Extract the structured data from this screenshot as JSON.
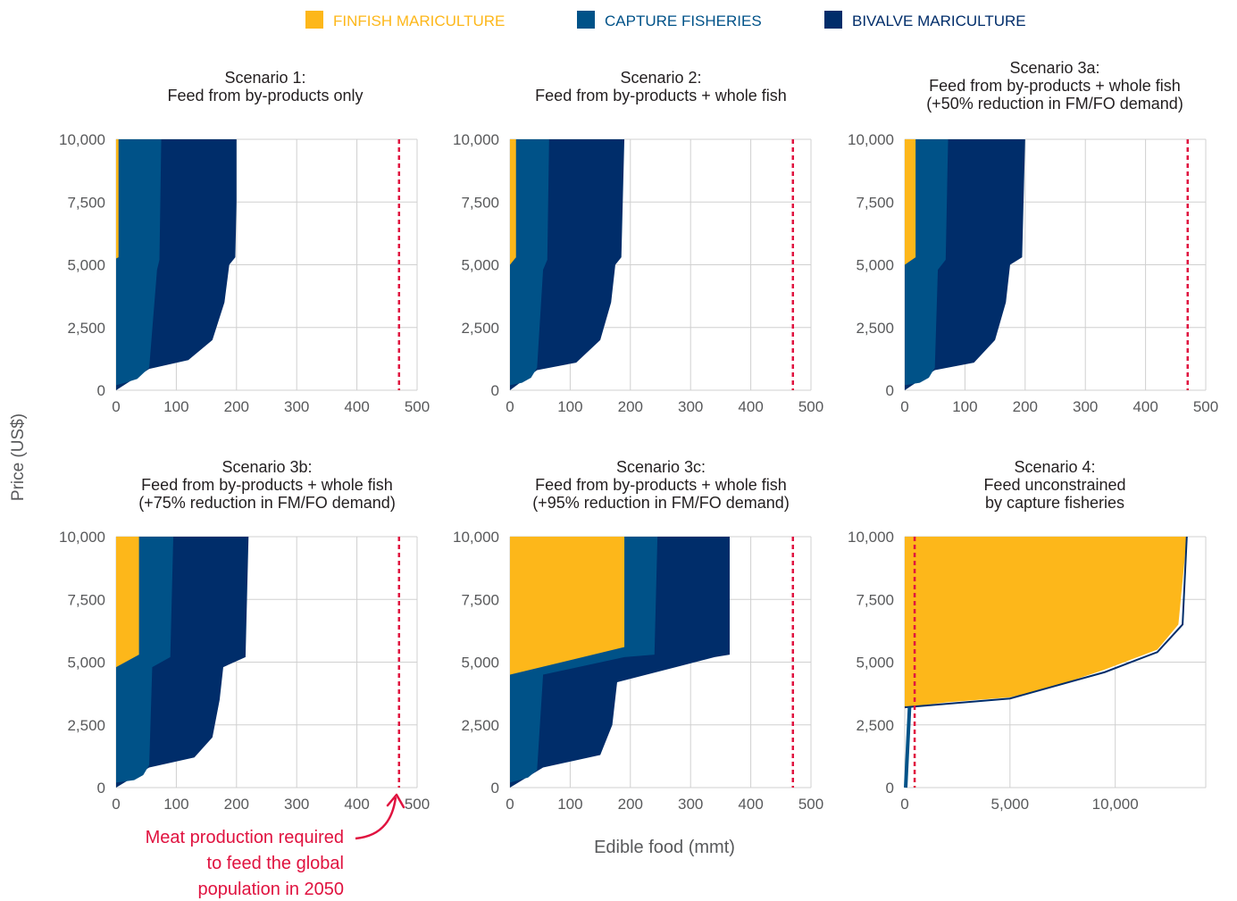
{
  "legend": [
    {
      "label": "FINFISH MARICULTURE",
      "color": "#FDB71A"
    },
    {
      "label": "CAPTURE FISHERIES",
      "color": "#005288"
    },
    {
      "label": "BIVALVE MARICULTURE",
      "color": "#002D6A"
    }
  ],
  "y_axis_label": "Price (US$)",
  "x_axis_label": "Edible food (mmt)",
  "reference_line": {
    "label": "Meat production required to feed the global population in 2050",
    "label_lines": [
      "Meat production required",
      "to feed the global",
      "population in 2050"
    ],
    "color": "#E0123F",
    "value": 470
  },
  "chart_data": [
    {
      "type": "area",
      "title_lines": [
        "Scenario 1:",
        "Feed from by-products only"
      ],
      "xlim": [
        0,
        500
      ],
      "ylim": [
        0,
        10000
      ],
      "xticks": [
        0,
        100,
        200,
        300,
        400,
        500
      ],
      "xtick_labels": [
        "0",
        "100",
        "200",
        "300",
        "400",
        "500"
      ],
      "yticks": [
        0,
        2500,
        5000,
        7500,
        10000
      ],
      "ytick_labels": [
        "0",
        "2,500",
        "5,000",
        "7,500",
        "10,000"
      ],
      "reference_x": 470,
      "series": [
        {
          "color": "#FDB71A",
          "boundary": [
            [
              0,
              10000
            ],
            [
              4,
              10000
            ],
            [
              4,
              7500
            ],
            [
              4,
              5300
            ],
            [
              0,
              5250
            ],
            [
              0,
              10000
            ]
          ]
        },
        {
          "color": "#005288",
          "boundary": [
            [
              0,
              200
            ],
            [
              15,
              300
            ],
            [
              35,
              450
            ],
            [
              55,
              900
            ],
            [
              68,
              4800
            ],
            [
              72,
              5200
            ],
            [
              75,
              10000
            ]
          ]
        },
        {
          "color": "#002D6A",
          "boundary": [
            [
              55,
              850
            ],
            [
              120,
              1200
            ],
            [
              160,
              2000
            ],
            [
              180,
              3500
            ],
            [
              188,
              5000
            ],
            [
              198,
              5300
            ],
            [
              200,
              7500
            ],
            [
              200,
              10000
            ]
          ]
        }
      ]
    },
    {
      "type": "area",
      "title_lines": [
        "Scenario 2:",
        "Feed from by-products + whole fish"
      ],
      "xlim": [
        0,
        500
      ],
      "ylim": [
        0,
        10000
      ],
      "xticks": [
        0,
        100,
        200,
        300,
        400,
        500
      ],
      "xtick_labels": [
        "0",
        "100",
        "200",
        "300",
        "400",
        "500"
      ],
      "yticks": [
        0,
        2500,
        5000,
        7500,
        10000
      ],
      "ytick_labels": [
        "0",
        "2,500",
        "5,000",
        "7,500",
        "10,000"
      ],
      "reference_x": 470,
      "series": [
        {
          "color": "#FDB71A",
          "boundary": [
            [
              0,
              10000
            ],
            [
              10,
              10000
            ],
            [
              10,
              5300
            ],
            [
              0,
              5000
            ],
            [
              0,
              10000
            ]
          ]
        },
        {
          "color": "#005288",
          "boundary": [
            [
              0,
              200
            ],
            [
              20,
              300
            ],
            [
              35,
              500
            ],
            [
              45,
              900
            ],
            [
              55,
              4800
            ],
            [
              62,
              5200
            ],
            [
              65,
              10000
            ]
          ]
        },
        {
          "color": "#002D6A",
          "boundary": [
            [
              45,
              800
            ],
            [
              110,
              1100
            ],
            [
              150,
              2000
            ],
            [
              168,
              3500
            ],
            [
              175,
              5000
            ],
            [
              185,
              5300
            ],
            [
              190,
              10000
            ]
          ]
        }
      ]
    },
    {
      "type": "area",
      "title_lines": [
        "Scenario 3a:",
        "Feed from by-products + whole fish",
        "(+50% reduction in FM/FO demand)"
      ],
      "xlim": [
        0,
        500
      ],
      "ylim": [
        0,
        10000
      ],
      "xticks": [
        0,
        100,
        200,
        300,
        400,
        500
      ],
      "xtick_labels": [
        "0",
        "100",
        "200",
        "300",
        "400",
        "500"
      ],
      "yticks": [
        0,
        2500,
        5000,
        7500,
        10000
      ],
      "ytick_labels": [
        "0",
        "2,500",
        "5,000",
        "7,500",
        "10,000"
      ],
      "reference_x": 470,
      "series": [
        {
          "color": "#FDB71A",
          "boundary": [
            [
              0,
              10000
            ],
            [
              18,
              10000
            ],
            [
              18,
              5300
            ],
            [
              0,
              5000
            ],
            [
              0,
              10000
            ]
          ]
        },
        {
          "color": "#005288",
          "boundary": [
            [
              0,
              200
            ],
            [
              25,
              300
            ],
            [
              40,
              500
            ],
            [
              50,
              900
            ],
            [
              55,
              4800
            ],
            [
              68,
              5200
            ],
            [
              72,
              10000
            ]
          ]
        },
        {
          "color": "#002D6A",
          "boundary": [
            [
              50,
              800
            ],
            [
              115,
              1100
            ],
            [
              150,
              2000
            ],
            [
              168,
              3500
            ],
            [
              175,
              5000
            ],
            [
              195,
              5300
            ],
            [
              200,
              10000
            ]
          ]
        }
      ]
    },
    {
      "type": "area",
      "title_lines": [
        "Scenario 3b:",
        "Feed from by-products + whole fish",
        "(+75% reduction in FM/FO demand)"
      ],
      "xlim": [
        0,
        500
      ],
      "ylim": [
        0,
        10000
      ],
      "xticks": [
        0,
        100,
        200,
        300,
        400,
        500
      ],
      "xtick_labels": [
        "0",
        "100",
        "200",
        "300",
        "400",
        "500"
      ],
      "yticks": [
        0,
        2500,
        5000,
        7500,
        10000
      ],
      "ytick_labels": [
        "0",
        "2,500",
        "5,000",
        "7,500",
        "10,000"
      ],
      "reference_x": 470,
      "series": [
        {
          "color": "#FDB71A",
          "boundary": [
            [
              0,
              10000
            ],
            [
              38,
              10000
            ],
            [
              38,
              5300
            ],
            [
              0,
              4800
            ],
            [
              0,
              10000
            ]
          ]
        },
        {
          "color": "#005288",
          "boundary": [
            [
              0,
              200
            ],
            [
              30,
              300
            ],
            [
              45,
              500
            ],
            [
              55,
              900
            ],
            [
              60,
              4800
            ],
            [
              90,
              5200
            ],
            [
              95,
              10000
            ]
          ]
        },
        {
          "color": "#002D6A",
          "boundary": [
            [
              55,
              800
            ],
            [
              130,
              1200
            ],
            [
              160,
              2000
            ],
            [
              172,
              3500
            ],
            [
              178,
              4800
            ],
            [
              215,
              5200
            ],
            [
              220,
              10000
            ]
          ]
        }
      ]
    },
    {
      "type": "area",
      "title_lines": [
        "Scenario 3c:",
        "Feed from by-products + whole fish",
        "(+95% reduction in FM/FO demand)"
      ],
      "xlim": [
        0,
        500
      ],
      "ylim": [
        0,
        10000
      ],
      "xticks": [
        0,
        100,
        200,
        300,
        400,
        500
      ],
      "xtick_labels": [
        "0",
        "100",
        "200",
        "300",
        "400",
        "500"
      ],
      "yticks": [
        0,
        2500,
        5000,
        7500,
        10000
      ],
      "ytick_labels": [
        "0",
        "2,500",
        "5,000",
        "7,500",
        "10,000"
      ],
      "reference_x": 470,
      "series": [
        {
          "color": "#FDB71A",
          "boundary": [
            [
              0,
              10000
            ],
            [
              190,
              10000
            ],
            [
              190,
              5600
            ],
            [
              0,
              4500
            ],
            [
              0,
              10000
            ]
          ]
        },
        {
          "color": "#005288",
          "boundary": [
            [
              0,
              200
            ],
            [
              30,
              400
            ],
            [
              45,
              700
            ],
            [
              55,
              4500
            ],
            [
              190,
              5200
            ],
            [
              240,
              5300
            ],
            [
              245,
              10000
            ]
          ]
        },
        {
          "color": "#002D6A",
          "boundary": [
            [
              55,
              800
            ],
            [
              150,
              1300
            ],
            [
              170,
              2500
            ],
            [
              178,
              4200
            ],
            [
              340,
              5200
            ],
            [
              365,
              5300
            ],
            [
              365,
              10000
            ]
          ]
        }
      ]
    },
    {
      "type": "area",
      "title_lines": [
        "Scenario 4:",
        "Feed unconstrained",
        "by capture fisheries"
      ],
      "xlim": [
        0,
        14300
      ],
      "ylim": [
        0,
        10000
      ],
      "xticks": [
        0,
        5000,
        10000
      ],
      "xtick_labels": [
        "0",
        "5,000",
        "10,000"
      ],
      "yticks": [
        0,
        2500,
        5000,
        7500,
        10000
      ],
      "ytick_labels": [
        "0",
        "2,500",
        "5,000",
        "7,500",
        "10,000"
      ],
      "reference_x": 470,
      "series": [
        {
          "color": "#FDB71A",
          "boundary": [
            [
              0,
              10000
            ],
            [
              13400,
              10000
            ],
            [
              13000,
              6500
            ],
            [
              12000,
              5500
            ],
            [
              9500,
              4700
            ],
            [
              7000,
              4000
            ],
            [
              5000,
              3600
            ],
            [
              2000,
              3400
            ],
            [
              0,
              3200
            ],
            [
              0,
              10000
            ]
          ]
        },
        {
          "color": "#005288",
          "boundary": [
            [
              0,
              0
            ],
            [
              100,
              3200
            ]
          ]
        },
        {
          "color": "#002D6A",
          "boundary": [
            [
              0,
              3200
            ],
            [
              5000,
              3550
            ],
            [
              9500,
              4600
            ],
            [
              12000,
              5400
            ],
            [
              13200,
              6500
            ],
            [
              13400,
              10000
            ]
          ]
        }
      ]
    }
  ]
}
